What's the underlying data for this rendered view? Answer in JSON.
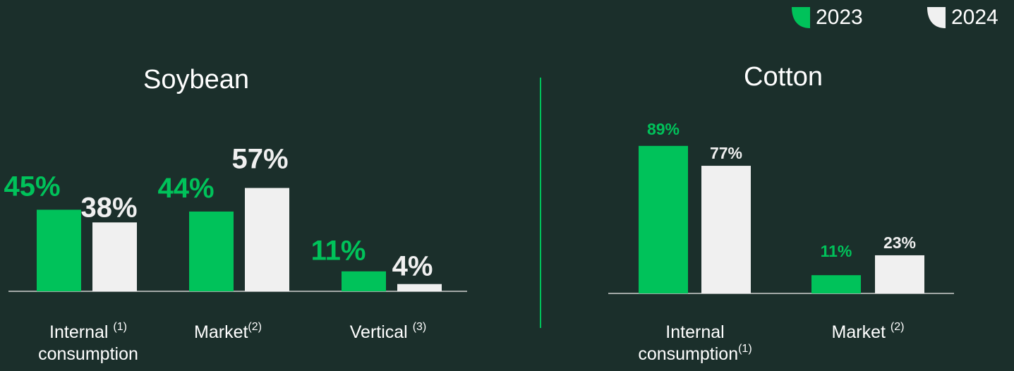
{
  "colors": {
    "y2023": "#00c25a",
    "y2024": "#f0f0f0",
    "background": "#1b2f2b",
    "axis": "#d0d0d0",
    "divider": "#00c25a"
  },
  "legend": [
    {
      "label": "2023",
      "color": "#00c25a"
    },
    {
      "label": "2024",
      "color": "#f0f0f0"
    }
  ],
  "chart_data": [
    {
      "type": "bar",
      "title": "Soybean",
      "categories": [
        "Internal consumption",
        "Market",
        "Vertical"
      ],
      "category_labels": [
        {
          "text": "Internal",
          "sup": "(1)",
          "line2": "consumption"
        },
        {
          "text": "Market",
          "sup": "(2)",
          "line2": ""
        },
        {
          "text": "Vertical",
          "sup": "(3)",
          "line2": ""
        }
      ],
      "series": [
        {
          "name": "2023",
          "values": [
            45,
            44,
            11
          ],
          "labels": [
            "45%",
            "44%",
            "11%"
          ]
        },
        {
          "name": "2024",
          "values": [
            38,
            57,
            4
          ],
          "labels": [
            "38%",
            "57%",
            "4%"
          ]
        }
      ],
      "ylim": [
        0,
        100
      ]
    },
    {
      "type": "bar",
      "title": "Cotton",
      "categories": [
        "Internal consumption",
        "Market"
      ],
      "category_labels": [
        {
          "text": "Internal",
          "sup": "",
          "line2": "consumption",
          "line2_sup": "(1)"
        },
        {
          "text": "Market",
          "sup": "(2)",
          "line2": ""
        }
      ],
      "series": [
        {
          "name": "2023",
          "values": [
            89,
            11
          ],
          "labels": [
            "89%",
            "11%"
          ]
        },
        {
          "name": "2024",
          "values": [
            77,
            23
          ],
          "labels": [
            "77%",
            "23%"
          ]
        }
      ],
      "ylim": [
        0,
        100
      ]
    }
  ]
}
